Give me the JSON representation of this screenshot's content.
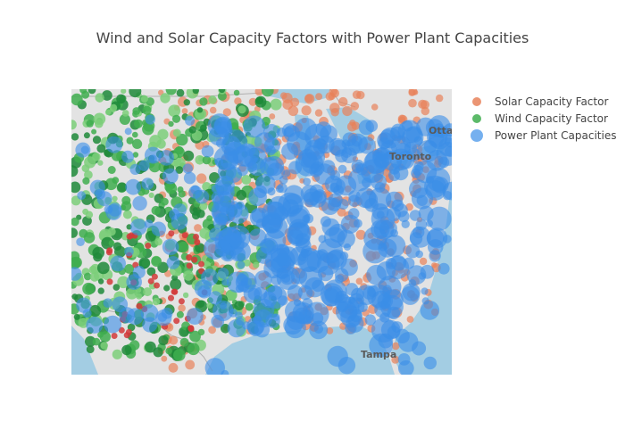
{
  "chart_data": {
    "type": "scatter",
    "subtype": "scattermapbox",
    "title": "Wind and Solar Capacity Factors with Power Plant Capacities",
    "legend_position": "right",
    "map_labels": [
      "Ottawa",
      "Toronto",
      "Tampa"
    ],
    "series": [
      {
        "name": "Solar Capacity Factor",
        "color": "#e8825a",
        "marker": "circle"
      },
      {
        "name": "Wind Capacity Factor",
        "color": "#3fae4f",
        "marker": "circle"
      },
      {
        "name": "Power Plant Capacities",
        "color": "#3b8ee8",
        "marker": "circle"
      }
    ]
  },
  "colors": {
    "land": "#e3e3e3",
    "water": "#a3cde3",
    "border": "#b0b0b0",
    "title_text": "#444444"
  }
}
